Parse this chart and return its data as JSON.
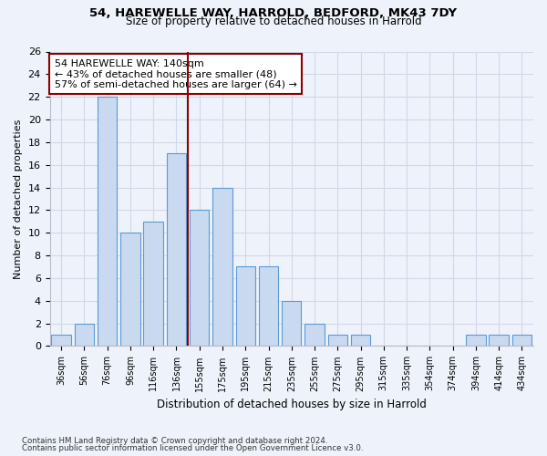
{
  "title_line1": "54, HAREWELLE WAY, HARROLD, BEDFORD, MK43 7DY",
  "title_line2": "Size of property relative to detached houses in Harrold",
  "xlabel": "Distribution of detached houses by size in Harrold",
  "ylabel": "Number of detached properties",
  "bins": [
    "36sqm",
    "56sqm",
    "76sqm",
    "96sqm",
    "116sqm",
    "136sqm",
    "155sqm",
    "175sqm",
    "195sqm",
    "215sqm",
    "235sqm",
    "255sqm",
    "275sqm",
    "295sqm",
    "315sqm",
    "335sqm",
    "354sqm",
    "374sqm",
    "394sqm",
    "414sqm",
    "434sqm"
  ],
  "counts": [
    1,
    2,
    22,
    10,
    11,
    17,
    12,
    14,
    7,
    7,
    4,
    2,
    1,
    1,
    0,
    0,
    0,
    0,
    1,
    1,
    1
  ],
  "bar_color": "#c9d9f0",
  "bar_edge_color": "#5b9bd5",
  "vline_x_index": 5.5,
  "vline_color": "#8b0000",
  "annotation_text": "54 HAREWELLE WAY: 140sqm\n← 43% of detached houses are smaller (48)\n57% of semi-detached houses are larger (64) →",
  "annotation_box_color": "white",
  "annotation_box_edge_color": "#8b0000",
  "ylim": [
    0,
    26
  ],
  "yticks": [
    0,
    2,
    4,
    6,
    8,
    10,
    12,
    14,
    16,
    18,
    20,
    22,
    24,
    26
  ],
  "grid_color": "#d0d8e8",
  "footer_line1": "Contains HM Land Registry data © Crown copyright and database right 2024.",
  "footer_line2": "Contains public sector information licensed under the Open Government Licence v3.0.",
  "bg_color": "#eef2fa"
}
